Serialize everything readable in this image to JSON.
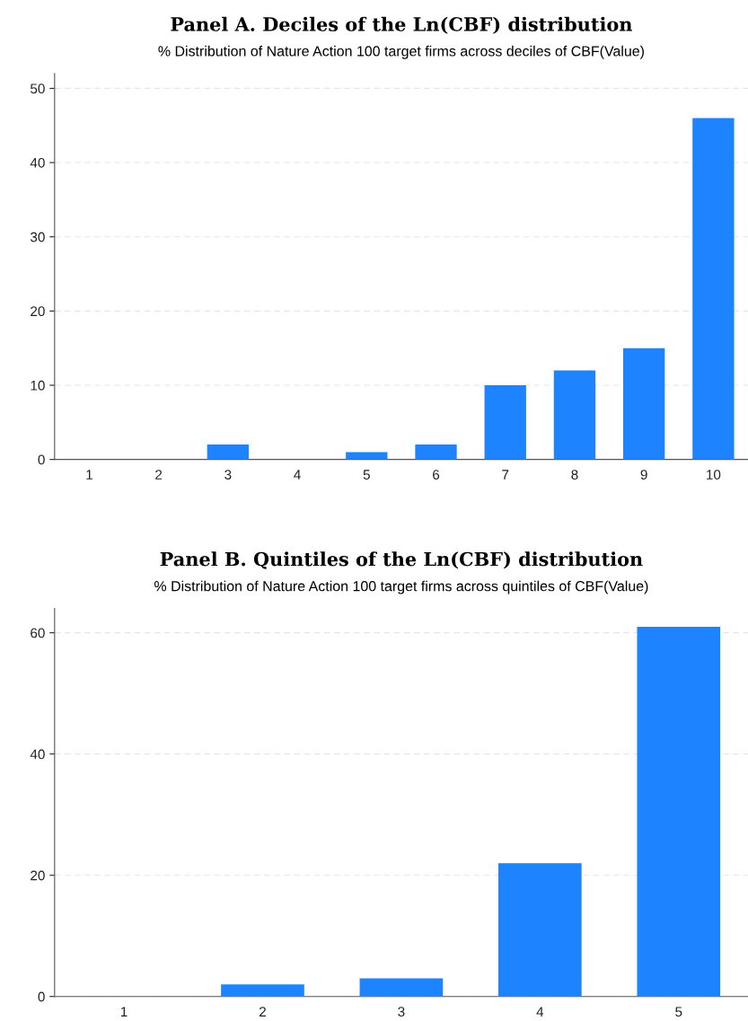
{
  "chart_data": [
    {
      "type": "bar",
      "title": "Panel A. Deciles of the Ln(CBF) distribution",
      "subtitle": "% Distribution of Nature Action 100 target firms across deciles of CBF(Value)",
      "categories": [
        "1",
        "2",
        "3",
        "4",
        "5",
        "6",
        "7",
        "8",
        "9",
        "10"
      ],
      "values": [
        0,
        0,
        2,
        0,
        1,
        2,
        10,
        12,
        15,
        46
      ],
      "color": "#1e83ff",
      "ylim": [
        0,
        52
      ],
      "yticks": [
        0,
        10,
        20,
        30,
        40,
        50
      ],
      "grid": "y"
    },
    {
      "type": "bar",
      "title": "Panel B. Quintiles of the Ln(CBF) distribution",
      "subtitle": "% Distribution of Nature Action 100 target firms across quintiles of CBF(Value)",
      "categories": [
        "1",
        "2",
        "3",
        "4",
        "5"
      ],
      "values": [
        0,
        2,
        3,
        22,
        61
      ],
      "color": "#1e83ff",
      "ylim": [
        0,
        64
      ],
      "yticks": [
        0,
        20,
        40,
        60
      ],
      "grid": "y"
    }
  ]
}
